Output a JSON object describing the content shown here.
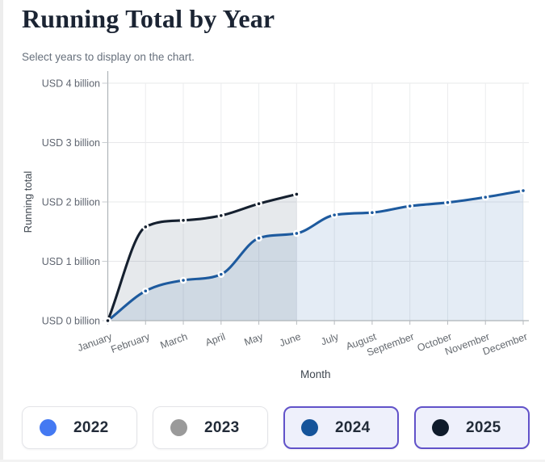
{
  "header": {
    "title": "Running Total by Year",
    "subtitle": "Select years to display on the chart."
  },
  "chart_data": {
    "type": "area",
    "x": [
      "January",
      "February",
      "March",
      "April",
      "May",
      "June",
      "July",
      "August",
      "September",
      "October",
      "November",
      "December"
    ],
    "xlabel": "Month",
    "ylabel": "Running total",
    "ylim": [
      0,
      4
    ],
    "ytick_labels": [
      "USD 0 billion",
      "USD 1 billion",
      "USD 2 billion",
      "USD 3 billion",
      "USD 4 billion"
    ],
    "grid": true,
    "unit": "USD billion",
    "legend_position": "bottom-buttons",
    "series": [
      {
        "name": "2024",
        "color": "#1d5a9e",
        "fill": "rgba(47,107,176,0.13)",
        "values": [
          0,
          0.5,
          0.68,
          0.78,
          1.39,
          1.47,
          1.78,
          1.82,
          1.93,
          1.99,
          2.08,
          2.19
        ]
      },
      {
        "name": "2025",
        "color": "#15202f",
        "fill": "rgba(100,116,139,0.16)",
        "values": [
          0,
          1.58,
          1.69,
          1.77,
          1.97,
          2.13
        ]
      }
    ]
  },
  "legend": {
    "buttons": [
      {
        "label": "2022",
        "dot_color": "#4479f2",
        "selected": false
      },
      {
        "label": "2023",
        "dot_color": "#9a9a9a",
        "selected": false
      },
      {
        "label": "2024",
        "dot_color": "#15549a",
        "selected": true
      },
      {
        "label": "2025",
        "dot_color": "#0f1b2b",
        "selected": true
      }
    ],
    "selected_border_color": "#6152c9",
    "selected_bg_color": "#eef0fb"
  }
}
